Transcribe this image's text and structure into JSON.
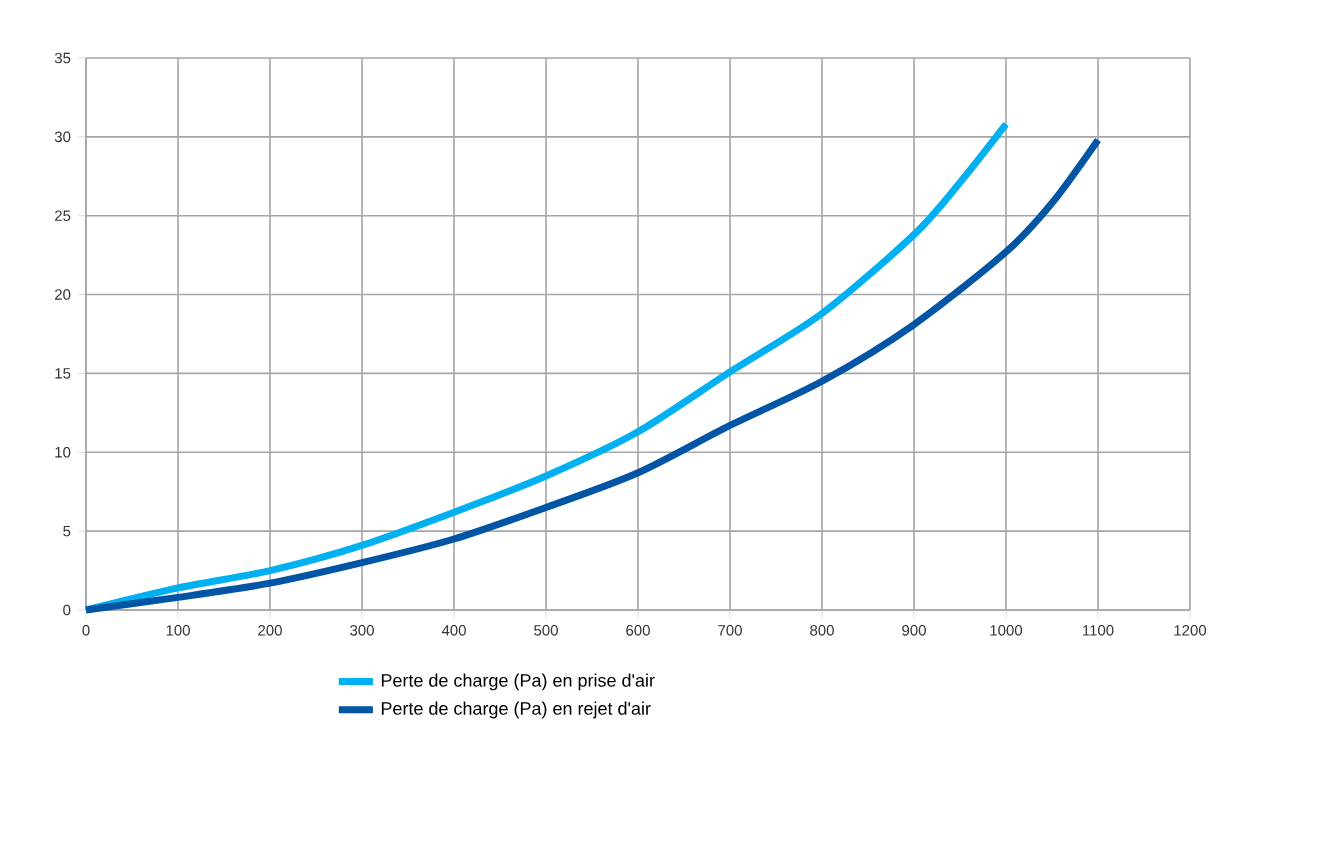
{
  "chart_data": {
    "type": "line",
    "series": [
      {
        "name": "Perte de charge (Pa) en prise d'air",
        "color": "#00b0f0",
        "x": [
          0,
          100,
          200,
          300,
          400,
          500,
          600,
          700,
          800,
          900,
          950,
          1000
        ],
        "values": [
          0,
          1.4,
          2.5,
          4.1,
          6.2,
          8.5,
          11.3,
          15.1,
          18.8,
          23.8,
          27.1,
          30.8
        ]
      },
      {
        "name": "Perte de charge (Pa) en rejet d'air",
        "color": "#0055a5",
        "x": [
          0,
          100,
          200,
          300,
          400,
          500,
          600,
          700,
          800,
          900,
          1000,
          1050,
          1100
        ],
        "values": [
          0,
          0.8,
          1.7,
          3.0,
          4.5,
          6.5,
          8.7,
          11.7,
          14.5,
          18.1,
          22.7,
          25.8,
          29.8
        ]
      }
    ],
    "xlim": [
      0,
      1200
    ],
    "xticks": [
      0,
      100,
      200,
      300,
      400,
      500,
      600,
      700,
      800,
      900,
      1000,
      1100,
      1200
    ],
    "ylim": [
      0,
      35
    ],
    "yticks": [
      0,
      5,
      10,
      15,
      20,
      25,
      30,
      35
    ],
    "grid": true,
    "legend": "bottom",
    "marker": "none",
    "line_style": "solid"
  }
}
